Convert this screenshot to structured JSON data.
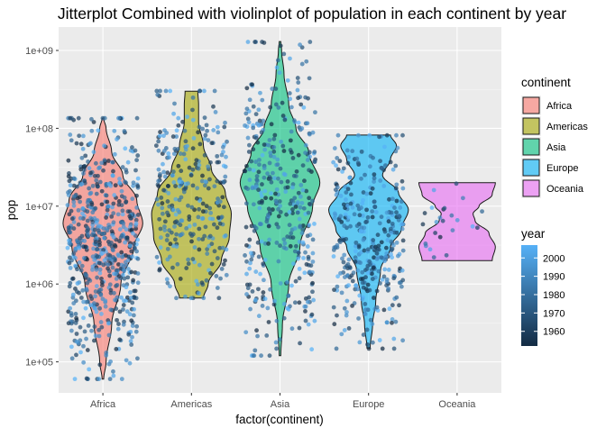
{
  "chart_data": {
    "type": "violin+jitter",
    "title": "Jitterplot Combined with violinplot of population in each continent by year",
    "xlabel": "factor(continent)",
    "ylabel": "pop",
    "y_scale": "log10",
    "ylim": [
      40000,
      2000000000
    ],
    "y_ticks": [
      {
        "value": 100000,
        "label": "1e+05"
      },
      {
        "value": 1000000,
        "label": "1e+06"
      },
      {
        "value": 10000000,
        "label": "1e+07"
      },
      {
        "value": 100000000,
        "label": "1e+08"
      },
      {
        "value": 1000000000,
        "label": "1e+09"
      }
    ],
    "categories": [
      "Africa",
      "Americas",
      "Asia",
      "Europe",
      "Oceania"
    ],
    "grid": true,
    "legend_placement": "right",
    "fill_legend": {
      "title": "continent",
      "items": [
        {
          "label": "Africa",
          "color": "#F8766D"
        },
        {
          "label": "Americas",
          "color": "#A3A500"
        },
        {
          "label": "Asia",
          "color": "#00BF7D"
        },
        {
          "label": "Europe",
          "color": "#00B0F6"
        },
        {
          "label": "Oceania",
          "color": "#E76BF3"
        }
      ]
    },
    "color_legend": {
      "title": "year",
      "breaks": [
        "2000",
        "1990",
        "1980",
        "1970",
        "1960"
      ],
      "low_color": "#132B43",
      "high_color": "#56B1F7",
      "range": [
        1952,
        2007
      ]
    },
    "violins": [
      {
        "continent": "Africa",
        "min": 60000,
        "max": 135000000,
        "profile": [
          [
            60000,
            0.02
          ],
          [
            100000,
            0.08
          ],
          [
            300000,
            0.22
          ],
          [
            1000000,
            0.45
          ],
          [
            3000000,
            0.78
          ],
          [
            6000000,
            1.0
          ],
          [
            12000000,
            0.85
          ],
          [
            25000000,
            0.5
          ],
          [
            50000000,
            0.22
          ],
          [
            100000000,
            0.08
          ],
          [
            135000000,
            0.02
          ]
        ]
      },
      {
        "continent": "Americas",
        "min": 660000,
        "max": 300000000,
        "profile": [
          [
            660000,
            0.3
          ],
          [
            1000000,
            0.42
          ],
          [
            2000000,
            0.75
          ],
          [
            4000000,
            0.95
          ],
          [
            8000000,
            1.0
          ],
          [
            15000000,
            0.85
          ],
          [
            30000000,
            0.5
          ],
          [
            60000000,
            0.3
          ],
          [
            120000000,
            0.18
          ],
          [
            200000000,
            0.18
          ],
          [
            300000000,
            0.16
          ]
        ]
      },
      {
        "continent": "Asia",
        "min": 120000,
        "max": 1300000000,
        "profile": [
          [
            120000,
            0.02
          ],
          [
            300000,
            0.06
          ],
          [
            1000000,
            0.22
          ],
          [
            3000000,
            0.5
          ],
          [
            10000000,
            0.82
          ],
          [
            20000000,
            1.0
          ],
          [
            50000000,
            0.72
          ],
          [
            100000000,
            0.4
          ],
          [
            200000000,
            0.22
          ],
          [
            500000000,
            0.1
          ],
          [
            1000000000,
            0.04
          ],
          [
            1300000000,
            0.02
          ]
        ]
      },
      {
        "continent": "Europe",
        "min": 150000,
        "max": 82000000,
        "profile": [
          [
            150000,
            0.04
          ],
          [
            300000,
            0.1
          ],
          [
            600000,
            0.18
          ],
          [
            1500000,
            0.3
          ],
          [
            3000000,
            0.55
          ],
          [
            5000000,
            0.82
          ],
          [
            9000000,
            1.0
          ],
          [
            15000000,
            0.75
          ],
          [
            25000000,
            0.35
          ],
          [
            40000000,
            0.55
          ],
          [
            60000000,
            0.7
          ],
          [
            82000000,
            0.55
          ]
        ]
      },
      {
        "continent": "Oceania",
        "min": 2000000,
        "max": 20000000,
        "profile": [
          [
            2000000,
            0.88
          ],
          [
            3000000,
            0.96
          ],
          [
            4500000,
            0.8
          ],
          [
            6500000,
            0.45
          ],
          [
            8000000,
            0.4
          ],
          [
            10000000,
            0.55
          ],
          [
            14000000,
            0.88
          ],
          [
            20000000,
            0.96
          ]
        ]
      }
    ],
    "jitter_points": [
      {
        "continent": "Africa",
        "n": 624,
        "log10_range": [
          4.78,
          8.13
        ]
      },
      {
        "continent": "Americas",
        "n": 300,
        "log10_range": [
          5.82,
          8.48
        ]
      },
      {
        "continent": "Asia",
        "n": 396,
        "log10_range": [
          5.08,
          9.11
        ]
      },
      {
        "continent": "Europe",
        "n": 360,
        "log10_range": [
          5.17,
          7.91
        ]
      },
      {
        "continent": "Oceania",
        "n": 24,
        "log10_range": [
          6.3,
          7.3
        ]
      }
    ]
  }
}
